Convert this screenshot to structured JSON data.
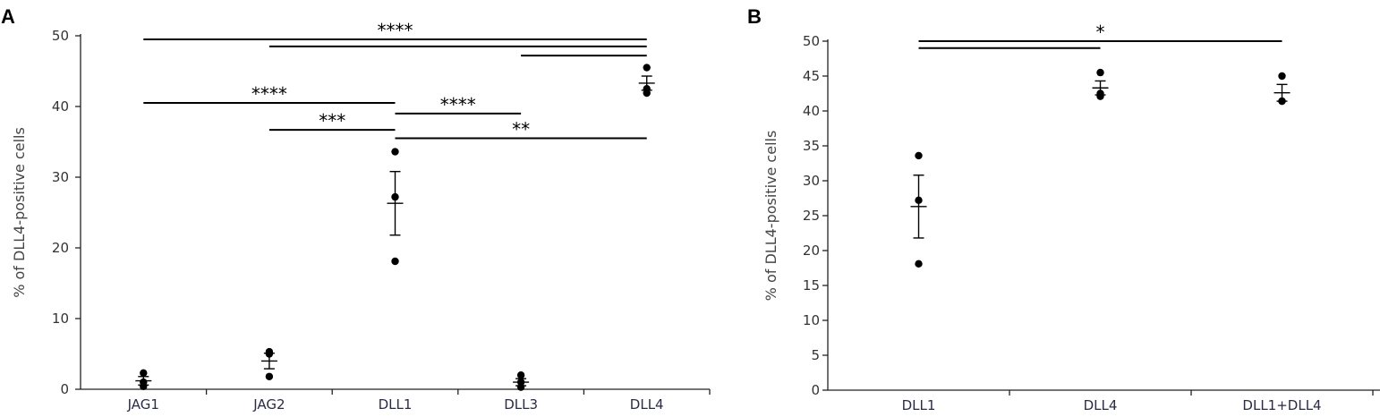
{
  "chart_data": [
    {
      "panel": "A",
      "type": "scatter",
      "ylabel": "% of DLL4-positive cells",
      "xlabel": "",
      "categories": [
        "JAG1",
        "JAG2",
        "DLL1",
        "DLL3",
        "DLL4"
      ],
      "ylim": [
        0,
        50
      ],
      "yticks": [
        "0",
        "10",
        "20",
        "30",
        "40",
        "50"
      ],
      "ytick_values": [
        0,
        10,
        20,
        30,
        40,
        50
      ],
      "points": [
        [
          2.3,
          1.0,
          0.4
        ],
        [
          5.3,
          5.0,
          1.8
        ],
        [
          33.6,
          27.2,
          18.1
        ],
        [
          2.0,
          1.0,
          0.3
        ],
        [
          45.5,
          42.5,
          41.9
        ]
      ],
      "mean": [
        1.2,
        4.0,
        26.3,
        1.0,
        43.3
      ],
      "sem_lower": [
        0.6,
        2.9,
        21.8,
        0.5,
        42.3
      ],
      "sem_upper": [
        1.8,
        5.1,
        30.8,
        1.5,
        44.3
      ],
      "significance": [
        {
          "from": "JAG1",
          "to": "DLL4",
          "y": 49.5,
          "label": "****"
        },
        {
          "from": "JAG2",
          "to": "DLL4",
          "y": 48.5,
          "label": ""
        },
        {
          "from": "DLL3",
          "to": "DLL4",
          "y": 47.2,
          "label": ""
        },
        {
          "from": "JAG1",
          "to": "DLL1",
          "y": 40.5,
          "label": "****"
        },
        {
          "from": "DLL1",
          "to": "DLL3",
          "y": 39.0,
          "label": "****"
        },
        {
          "from": "JAG2",
          "to": "DLL1",
          "y": 36.7,
          "label": "***"
        },
        {
          "from": "DLL1",
          "to": "DLL4",
          "y": 35.5,
          "label": "**"
        }
      ]
    },
    {
      "panel": "B",
      "type": "scatter",
      "ylabel": "% of DLL4-positive cells",
      "xlabel": "",
      "categories": [
        "DLL1",
        "DLL4",
        "DLL1+DLL4"
      ],
      "ylim": [
        0,
        50
      ],
      "yticks": [
        "0",
        "5",
        "10",
        "15",
        "20",
        "25",
        "30",
        "35",
        "40",
        "45",
        "50"
      ],
      "ytick_values": [
        0,
        5,
        10,
        15,
        20,
        25,
        30,
        35,
        40,
        45,
        50
      ],
      "points": [
        [
          33.6,
          27.2,
          18.1
        ],
        [
          45.5,
          42.5,
          42.1
        ],
        [
          45.0,
          41.4,
          41.4
        ]
      ],
      "mean": [
        26.3,
        43.3,
        42.6
      ],
      "sem_lower": [
        21.8,
        42.3,
        41.4
      ],
      "sem_upper": [
        30.8,
        44.3,
        43.8
      ],
      "significance": [
        {
          "from": "DLL1",
          "to": "DLL1+DLL4",
          "y": 50.0,
          "label": "*"
        },
        {
          "from": "DLL1",
          "to": "DLL4",
          "y": 49.0,
          "label": ""
        }
      ]
    }
  ]
}
